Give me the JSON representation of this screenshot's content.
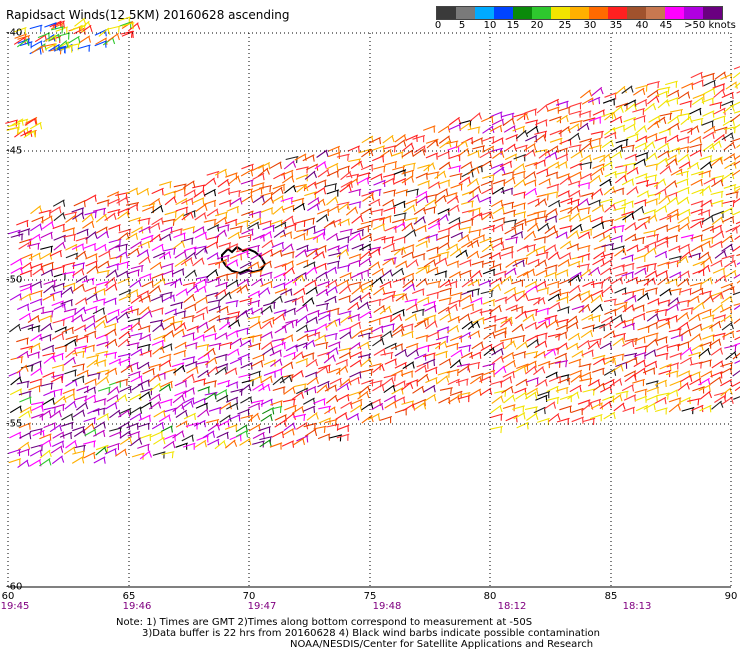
{
  "title": "Rapidsact Winds(12.5KM) 20160628 ascending",
  "colorbar": {
    "colors": [
      "#3a3a3a",
      "#7a7a7a",
      "#00aaff",
      "#0044ff",
      "#0a8a0a",
      "#2ec82e",
      "#f2e400",
      "#ffb000",
      "#ff6a00",
      "#ff2020",
      "#a0522d",
      "#c87850",
      "#ff00ff",
      "#b000e0",
      "#6a0080"
    ],
    "labels": [
      "0",
      "5",
      "10",
      "15",
      "20",
      "25",
      "30",
      "35",
      "40",
      "45",
      ">50 knots"
    ]
  },
  "axes": {
    "lat_labels": [
      "-40",
      "-45",
      "-50",
      "-55",
      "-60"
    ],
    "lon_labels": [
      "60",
      "65",
      "70",
      "75",
      "80",
      "85",
      "90"
    ],
    "time_labels": [
      "19:45",
      "19:46",
      "19:47",
      "19:48",
      "18:12",
      "18:13"
    ]
  },
  "notes": [
    "Note: 1) Times are GMT 2)Times along bottom correspond to measurement at -50S",
    "3)Data buffer is 22 hrs from 20160628 4) Black wind barbs indicate possible contamination",
    "NOAA/NESDIS/Center for Satellite Applications and Research"
  ]
}
